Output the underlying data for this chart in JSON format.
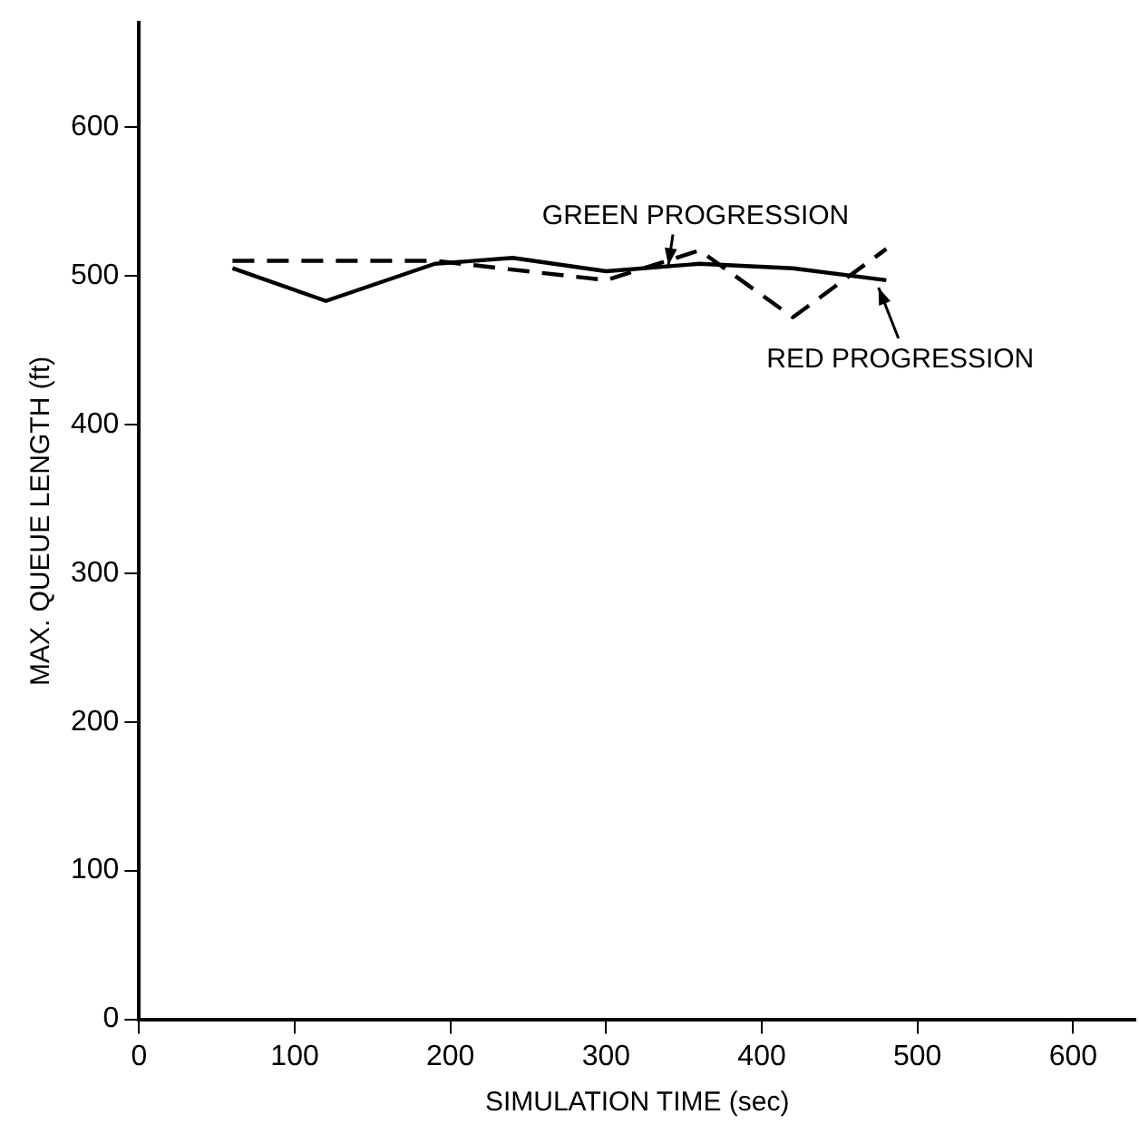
{
  "chart_data": {
    "type": "line",
    "xlabel": "SIMULATION TIME (sec)",
    "ylabel": "MAX. QUEUE LENGTH (ft)",
    "xlim": [
      0,
      640
    ],
    "xticks": [
      0,
      100,
      200,
      300,
      400,
      500,
      600
    ],
    "ylim": [
      0,
      670
    ],
    "yticks": [
      0,
      100,
      200,
      300,
      400,
      500,
      600
    ],
    "grid": false,
    "legend": false,
    "marker": "none",
    "series": [
      {
        "color": "#000000",
        "line_style": "solid",
        "x": [
          60,
          120,
          190,
          240,
          300,
          360,
          420,
          480
        ],
        "values": [
          505,
          483,
          508,
          512,
          503,
          508,
          505,
          497
        ]
      },
      {
        "color": "#000000",
        "line_style": "dashed",
        "x": [
          60,
          190,
          300,
          360,
          420,
          480
        ],
        "values": [
          510,
          510,
          497,
          517,
          472,
          518
        ]
      }
    ],
    "annotations": [
      {
        "text": "GREEN PROGRESSION",
        "x": 340,
        "y": 507
      },
      {
        "text": "RED PROGRESSION",
        "x": 475,
        "y": 492
      }
    ]
  }
}
